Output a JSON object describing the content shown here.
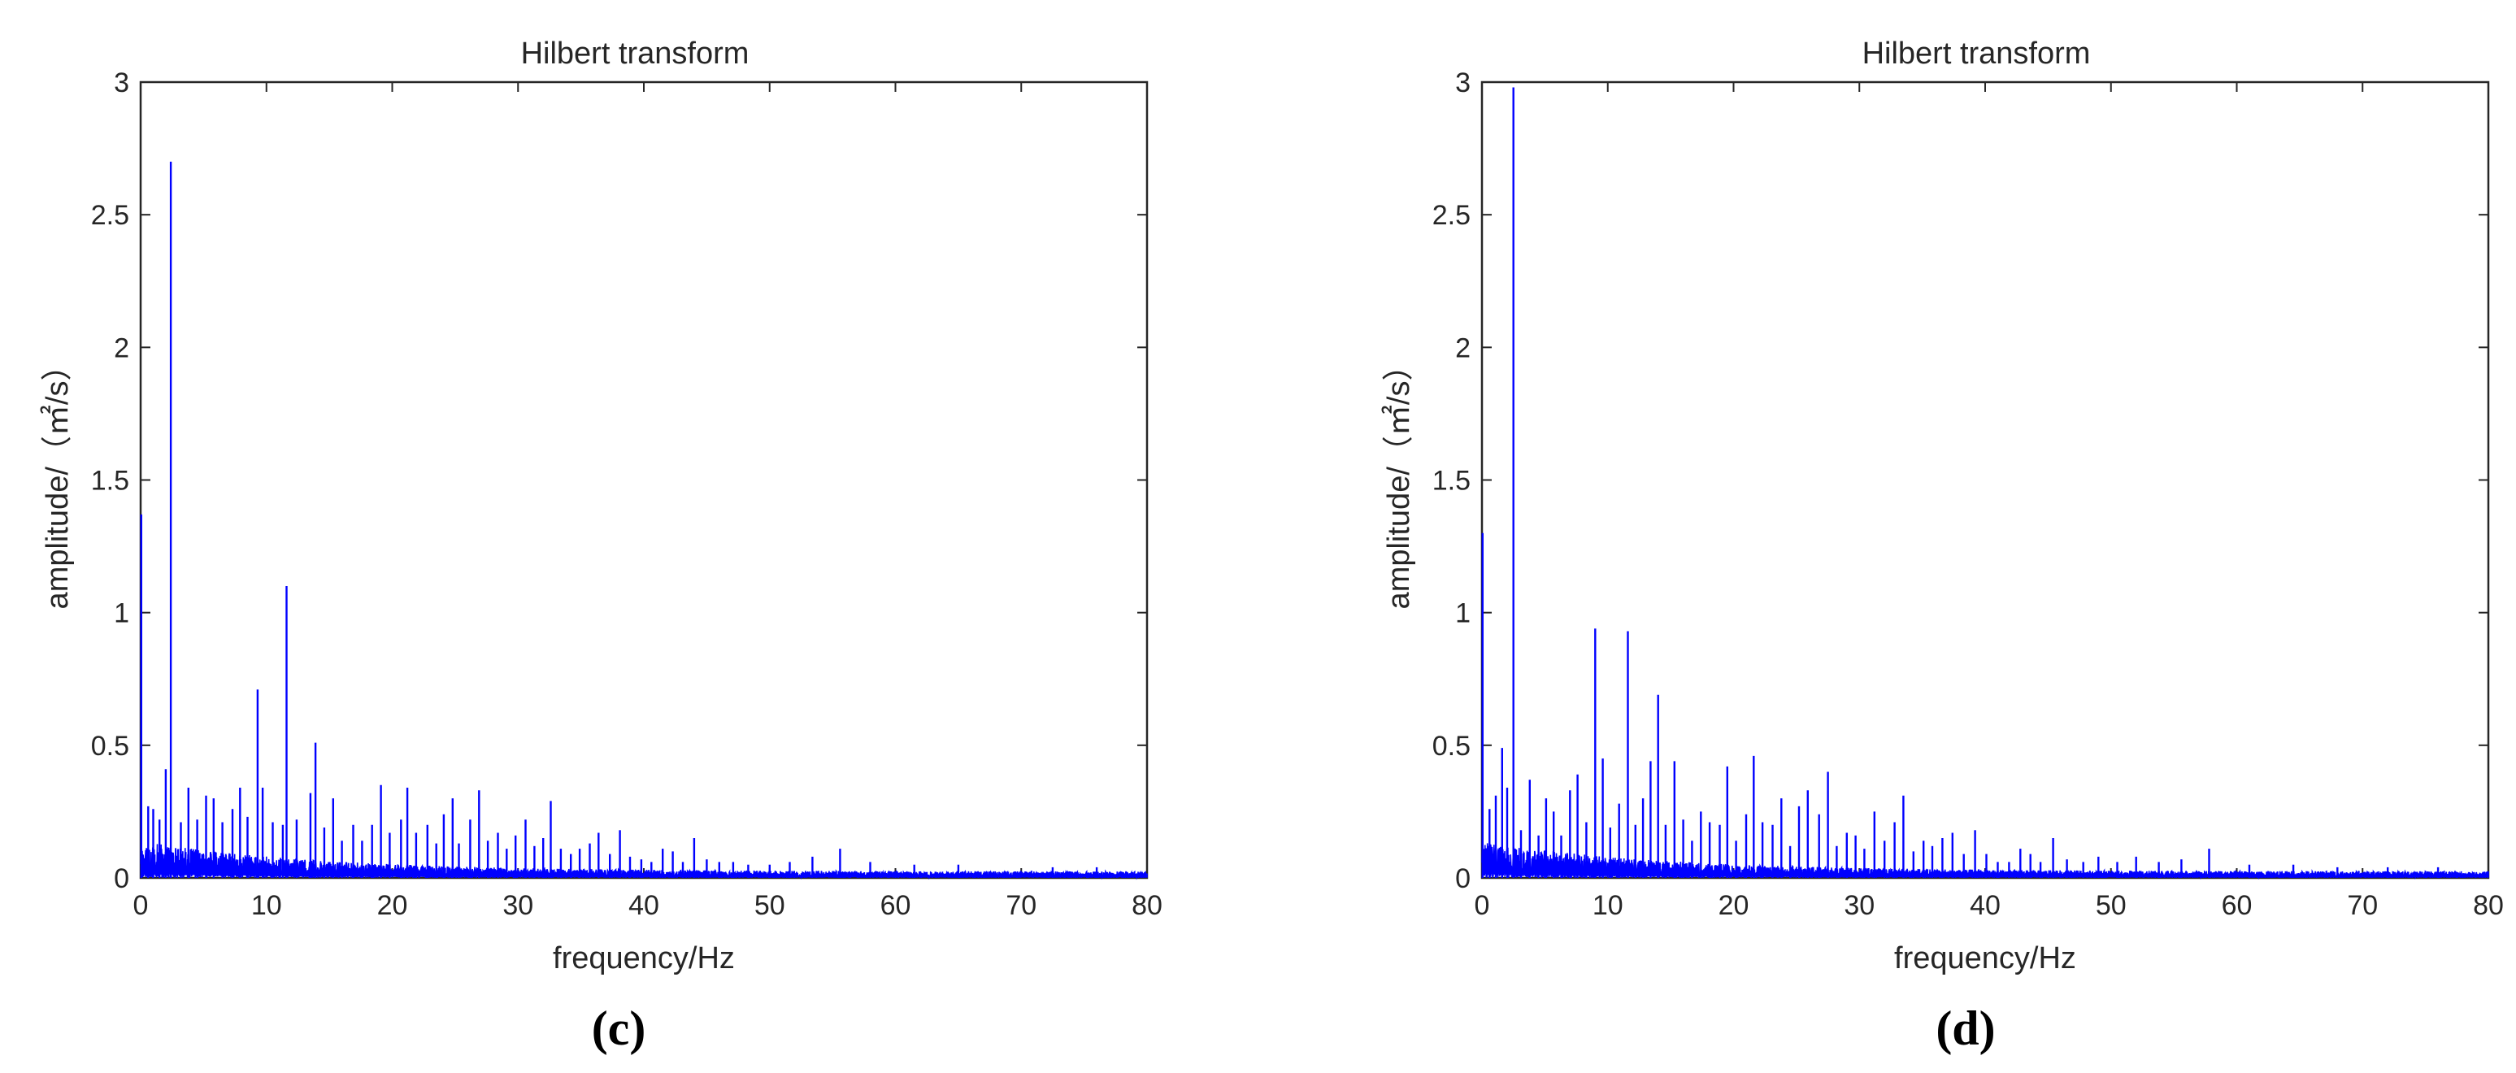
{
  "chart_data": [
    {
      "type": "line",
      "panel_label": "(c)",
      "title": "Hilbert transform",
      "xlabel": "frequency/Hz",
      "ylabel": "amplitude/（㎡/s）",
      "xlim": [
        0,
        80
      ],
      "ylim": [
        0,
        3
      ],
      "xticks": [
        "0",
        "10",
        "20",
        "30",
        "40",
        "50",
        "60",
        "70",
        "80"
      ],
      "yticks": [
        "0",
        "0.5",
        "1",
        "1.5",
        "2",
        "2.5",
        "3"
      ],
      "grid": false,
      "series_color": "#0000ff",
      "peaks": {
        "x": [
          0.05,
          0.6,
          1.0,
          1.5,
          2.0,
          2.4,
          3.2,
          3.8,
          4.5,
          5.2,
          5.8,
          6.5,
          7.3,
          7.9,
          8.5,
          9.3,
          9.7,
          10.5,
          11.3,
          11.6,
          12.4,
          13.5,
          13.9,
          14.6,
          15.3,
          16.0,
          16.9,
          17.6,
          18.4,
          19.1,
          19.8,
          20.7,
          21.2,
          21.9,
          22.8,
          23.5,
          24.1,
          24.8,
          25.3,
          26.2,
          26.9,
          27.6,
          28.4,
          29.1,
          29.8,
          30.6,
          31.3,
          32.0,
          32.6,
          33.4,
          34.2,
          34.9,
          35.7,
          36.4,
          37.3,
          38.1,
          38.9,
          39.8,
          40.6,
          41.5,
          42.3,
          43.1,
          44.0,
          45.0,
          46.0,
          47.1,
          48.3,
          50.0,
          51.6,
          53.4,
          55.6,
          58.0,
          61.5,
          65.0,
          72.5,
          76.0
        ],
        "y": [
          1.37,
          0.27,
          0.26,
          0.22,
          0.41,
          2.7,
          0.21,
          0.34,
          0.22,
          0.31,
          0.3,
          0.21,
          0.26,
          0.34,
          0.23,
          0.71,
          0.34,
          0.21,
          0.2,
          1.1,
          0.22,
          0.32,
          0.51,
          0.19,
          0.3,
          0.14,
          0.2,
          0.14,
          0.2,
          0.35,
          0.17,
          0.22,
          0.34,
          0.17,
          0.2,
          0.13,
          0.24,
          0.3,
          0.13,
          0.22,
          0.33,
          0.14,
          0.17,
          0.11,
          0.16,
          0.22,
          0.12,
          0.15,
          0.29,
          0.11,
          0.09,
          0.11,
          0.13,
          0.17,
          0.09,
          0.18,
          0.08,
          0.07,
          0.06,
          0.11,
          0.1,
          0.06,
          0.15,
          0.07,
          0.06,
          0.06,
          0.05,
          0.05,
          0.06,
          0.08,
          0.11,
          0.06,
          0.05,
          0.05,
          0.04,
          0.04
        ]
      }
    },
    {
      "type": "line",
      "panel_label": "(d)",
      "title": "Hilbert transform",
      "xlabel": "frequency/Hz",
      "ylabel": "amplitude/（㎡/s）",
      "xlim": [
        0,
        80
      ],
      "ylim": [
        0,
        3
      ],
      "xticks": [
        "0",
        "10",
        "20",
        "30",
        "40",
        "50",
        "60",
        "70",
        "80"
      ],
      "yticks": [
        "0",
        "0.5",
        "1",
        "1.5",
        "2",
        "2.5",
        "3"
      ],
      "grid": false,
      "series_color": "#0000ff",
      "peaks": {
        "x": [
          0.05,
          0.6,
          1.1,
          1.6,
          2.0,
          2.5,
          3.1,
          3.8,
          4.5,
          5.1,
          5.7,
          6.3,
          7.0,
          7.6,
          8.3,
          9.0,
          9.6,
          10.2,
          10.9,
          11.6,
          12.2,
          12.8,
          13.4,
          14.0,
          14.6,
          15.3,
          16.0,
          16.7,
          17.4,
          18.1,
          18.9,
          19.5,
          20.2,
          21.0,
          21.6,
          22.3,
          23.1,
          23.8,
          24.5,
          25.2,
          25.9,
          26.8,
          27.5,
          28.2,
          29.0,
          29.7,
          30.4,
          31.2,
          32.0,
          32.8,
          33.5,
          34.3,
          35.1,
          35.8,
          36.6,
          37.4,
          38.3,
          39.2,
          40.1,
          41.0,
          41.9,
          42.8,
          43.6,
          44.4,
          45.4,
          46.5,
          47.8,
          49.0,
          50.5,
          52.0,
          53.8,
          55.6,
          57.8,
          61.0,
          64.5,
          68.0,
          72.0,
          76.0
        ],
        "y": [
          1.3,
          0.26,
          0.31,
          0.49,
          0.34,
          2.98,
          0.18,
          0.37,
          0.16,
          0.3,
          0.25,
          0.16,
          0.33,
          0.39,
          0.21,
          0.94,
          0.45,
          0.19,
          0.28,
          0.93,
          0.2,
          0.3,
          0.44,
          0.69,
          0.2,
          0.44,
          0.22,
          0.14,
          0.25,
          0.21,
          0.2,
          0.42,
          0.14,
          0.24,
          0.46,
          0.21,
          0.2,
          0.3,
          0.12,
          0.27,
          0.33,
          0.24,
          0.4,
          0.12,
          0.17,
          0.16,
          0.11,
          0.25,
          0.14,
          0.21,
          0.31,
          0.1,
          0.14,
          0.12,
          0.15,
          0.17,
          0.09,
          0.18,
          0.09,
          0.06,
          0.06,
          0.11,
          0.09,
          0.06,
          0.15,
          0.07,
          0.06,
          0.08,
          0.06,
          0.08,
          0.06,
          0.07,
          0.11,
          0.05,
          0.05,
          0.04,
          0.04,
          0.04
        ]
      }
    }
  ]
}
